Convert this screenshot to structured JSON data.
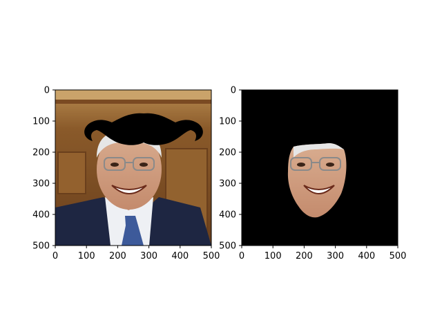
{
  "chart_data": [
    {
      "type": "image",
      "title": "",
      "xlabel": "",
      "ylabel": "",
      "xlim": [
        0,
        500
      ],
      "ylim": [
        500,
        0
      ],
      "x_ticks": [
        "0",
        "100",
        "200",
        "300",
        "400",
        "500"
      ],
      "y_ticks": [
        "0",
        "100",
        "200",
        "300",
        "400",
        "500"
      ],
      "grid": false,
      "legend": "none",
      "content": "photo-with-mustache-overlay",
      "colors": {
        "background_wood": "#8a5a2a",
        "suit": "#1e2642",
        "skin": "#d7a786",
        "hair": "#e6e6e6",
        "mustache": "#000000"
      }
    },
    {
      "type": "image",
      "title": "",
      "xlabel": "",
      "ylabel": "",
      "xlim": [
        0,
        500
      ],
      "ylim": [
        500,
        0
      ],
      "x_ticks": [
        "0",
        "100",
        "200",
        "300",
        "400",
        "500"
      ],
      "y_ticks": [
        "0",
        "100",
        "200",
        "300",
        "400",
        "500"
      ],
      "grid": false,
      "legend": "none",
      "content": "face-mask-on-black",
      "colors": {
        "background": "#000000",
        "skin": "#d7a786",
        "hair": "#e6e6e6"
      }
    }
  ]
}
